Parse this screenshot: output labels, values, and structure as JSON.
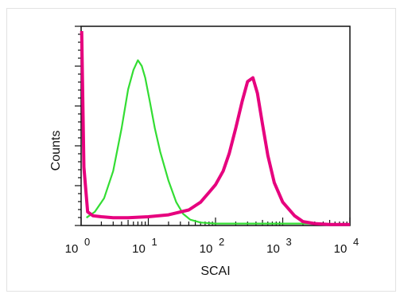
{
  "chart_data": {
    "type": "line",
    "title": "",
    "xlabel": "SCAI",
    "ylabel": "Counts",
    "x_scale": "log",
    "xlim": [
      1,
      10000
    ],
    "ylim": [
      0,
      1
    ],
    "x_ticks": [
      {
        "base": "10",
        "exp": "0"
      },
      {
        "base": "10",
        "exp": "1"
      },
      {
        "base": "10",
        "exp": "2"
      },
      {
        "base": "10",
        "exp": "3"
      },
      {
        "base": "10",
        "exp": "4"
      }
    ],
    "grid": false,
    "legend": "none",
    "series": [
      {
        "color": "#33dd33",
        "x": [
          1.2,
          1.6,
          2.2,
          3.0,
          4.0,
          5.0,
          6.0,
          7.0,
          8.0,
          9.0,
          10.5,
          12.5,
          15,
          20,
          26,
          33,
          42,
          60,
          100,
          300,
          1000,
          3000,
          10000
        ],
        "y": [
          0.04,
          0.07,
          0.14,
          0.28,
          0.5,
          0.7,
          0.8,
          0.85,
          0.82,
          0.76,
          0.64,
          0.5,
          0.38,
          0.23,
          0.12,
          0.06,
          0.03,
          0.015,
          0.01,
          0.01,
          0.01,
          0.01,
          0.005
        ]
      },
      {
        "color": "#e6007e",
        "x": [
          1.02,
          1.1,
          1.25,
          1.5,
          2,
          3,
          5,
          10,
          20,
          40,
          60,
          80,
          100,
          130,
          160,
          200,
          250,
          300,
          360,
          420,
          500,
          600,
          750,
          1000,
          1500,
          2000,
          3000,
          5000,
          10000
        ],
        "y": [
          1.0,
          0.3,
          0.07,
          0.05,
          0.045,
          0.04,
          0.04,
          0.045,
          0.055,
          0.08,
          0.12,
          0.17,
          0.21,
          0.28,
          0.37,
          0.5,
          0.64,
          0.74,
          0.76,
          0.68,
          0.52,
          0.36,
          0.22,
          0.12,
          0.05,
          0.02,
          0.01,
          0.005,
          0.005
        ]
      }
    ]
  }
}
